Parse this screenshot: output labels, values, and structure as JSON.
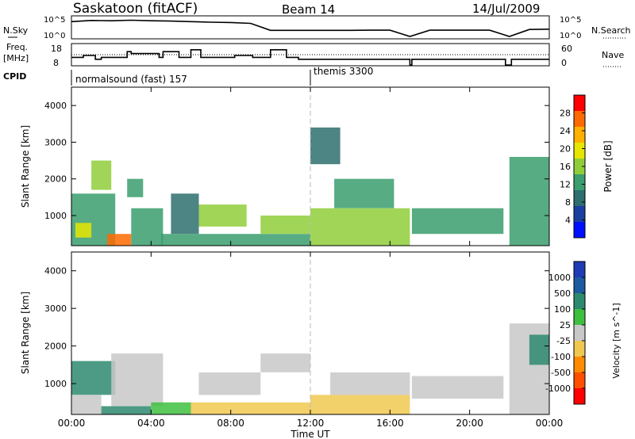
{
  "header": {
    "station": "Saskatoon (fitACF)",
    "beam": "Beam 14",
    "date": "14/Jul/2009"
  },
  "status_panels": {
    "nsky_label": "N.Sky",
    "nsky_ticks": [
      "10^5",
      "10^0"
    ],
    "nsearch_label": "N.Search",
    "nsearch_ticks": [
      "10^5",
      "10^0"
    ],
    "freq_label": "Freq.",
    "freq_unit": "[MHz]",
    "freq_ticks": [
      "18",
      "8"
    ],
    "nave_label": "Nave",
    "nave_ticks": [
      "60",
      "0"
    ],
    "cpid_label": "CPID",
    "cpid_modes": [
      {
        "name": "normalsound (fast) 157",
        "start_hour": 0
      },
      {
        "name": "themis 3300",
        "start_hour": 12
      }
    ]
  },
  "power_panel": {
    "ylabel": "Slant Range [km]",
    "yticks": [
      "4000",
      "3000",
      "2000",
      "1000"
    ],
    "colorbar_label": "Power [dB]",
    "colorbar_ticks": [
      "28",
      "24",
      "20",
      "16",
      "12",
      "8",
      "4"
    ],
    "colorbar_colors": [
      "#ff0000",
      "#ff6a00",
      "#ffb000",
      "#e6e600",
      "#8fce3a",
      "#3a9e6e",
      "#2e6e6e",
      "#1b3fa0",
      "#0010ff"
    ]
  },
  "velocity_panel": {
    "ylabel": "Slant Range [km]",
    "yticks": [
      "4000",
      "3000",
      "2000",
      "1000"
    ],
    "colorbar_label": "Velocity [m s^-1]",
    "colorbar_ticks": [
      "1000",
      "500",
      "100",
      "25",
      "-25",
      "-100",
      "-500",
      "-1000"
    ],
    "colorbar_colors": [
      "#1e3cb4",
      "#1e5aa0",
      "#2e8a6e",
      "#3fbf3f",
      "#c8c8c8",
      "#f0c850",
      "#ff8c00",
      "#ff5000",
      "#ff0000"
    ]
  },
  "x_axis": {
    "ticks": [
      "00:00",
      "04:00",
      "08:00",
      "12:00",
      "16:00",
      "20:00",
      "00:00"
    ],
    "label": "Time UT"
  },
  "chart_data": [
    {
      "type": "line",
      "title": "Saskatoon (fitACF) Beam 14 14/Jul/2009",
      "xlabel": "Time UT",
      "ylabel": "N.Sky / N.Search",
      "x": [
        0,
        1,
        2,
        3,
        4,
        5,
        6,
        7,
        8,
        9,
        10,
        11,
        12,
        13,
        14,
        15,
        16,
        17,
        18,
        19,
        20,
        21,
        22,
        23,
        24
      ],
      "series": [
        {
          "name": "N.Sky",
          "values": [
            0.85,
            0.92,
            0.9,
            0.93,
            0.9,
            0.88,
            0.85,
            0.82,
            0.8,
            0.75,
            0.35,
            0.35,
            0.35,
            0.35,
            0.35,
            0.36,
            0.36,
            0.0,
            0.36,
            0.36,
            0.36,
            0.36,
            0.0,
            0.4,
            0.42
          ]
        }
      ]
    },
    {
      "type": "line",
      "title": "",
      "xlabel": "Time UT",
      "ylabel": "Freq. [MHz]",
      "ylim": [
        8,
        18
      ],
      "x": [
        0,
        0.6,
        1.2,
        1.5,
        2.2,
        2.8,
        3.0,
        3.6,
        4.4,
        4.6,
        5.4,
        6.0,
        6.5,
        7.0,
        8.2,
        9.1,
        10.0,
        10.8,
        11.4,
        12.0,
        14.0,
        16.0,
        17.0,
        17.1,
        21.7,
        21.8,
        22.1,
        24.0
      ],
      "values": [
        12,
        13,
        11,
        12,
        12,
        15,
        14,
        14,
        12,
        15,
        12,
        16,
        12,
        12,
        13,
        12,
        16,
        12,
        11,
        11,
        11,
        11,
        8,
        11,
        11,
        8,
        11,
        11
      ]
    },
    {
      "type": "heatmap",
      "title": "Power",
      "xlabel": "Time UT",
      "ylabel": "Slant Range [km]",
      "xlim": [
        0,
        24
      ],
      "ylim": [
        180,
        4500
      ],
      "colorbar": {
        "label": "Power [dB]",
        "range": [
          0,
          30
        ],
        "ticks": [
          4,
          8,
          12,
          16,
          20,
          24,
          28
        ]
      },
      "regions": [
        {
          "t0": 0.0,
          "t1": 2.2,
          "r0": 180,
          "r1": 1600,
          "value": 12
        },
        {
          "t0": 1.8,
          "t1": 3.0,
          "r0": 180,
          "r1": 500,
          "value": 28
        },
        {
          "t0": 0.2,
          "t1": 1.0,
          "r0": 400,
          "r1": 800,
          "value": 20
        },
        {
          "t0": 1.0,
          "t1": 2.0,
          "r0": 1700,
          "r1": 2500,
          "value": 14
        },
        {
          "t0": 2.8,
          "t1": 3.6,
          "r0": 1500,
          "r1": 2000,
          "value": 12
        },
        {
          "t0": 3.0,
          "t1": 4.6,
          "r0": 180,
          "r1": 1200,
          "value": 10
        },
        {
          "t0": 5.0,
          "t1": 6.4,
          "r0": 500,
          "r1": 1600,
          "value": 9
        },
        {
          "t0": 6.4,
          "t1": 8.8,
          "r0": 700,
          "r1": 1300,
          "value": 14
        },
        {
          "t0": 4.5,
          "t1": 12.0,
          "r0": 180,
          "r1": 500,
          "value": 12
        },
        {
          "t0": 9.5,
          "t1": 12.0,
          "r0": 500,
          "r1": 1000,
          "value": 14
        },
        {
          "t0": 12.0,
          "t1": 13.5,
          "r0": 2400,
          "r1": 3400,
          "value": 8
        },
        {
          "t0": 12.0,
          "t1": 17.0,
          "r0": 180,
          "r1": 1200,
          "value": 14
        },
        {
          "t0": 13.2,
          "t1": 16.2,
          "r0": 1200,
          "r1": 2000,
          "value": 10
        },
        {
          "t0": 17.1,
          "t1": 21.7,
          "r0": 500,
          "r1": 1200,
          "value": 12
        },
        {
          "t0": 22.0,
          "t1": 24.0,
          "r0": 180,
          "r1": 2600,
          "value": 10
        }
      ]
    },
    {
      "type": "heatmap",
      "title": "Velocity",
      "xlabel": "Time UT",
      "ylabel": "Slant Range [km]",
      "xlim": [
        0,
        24
      ],
      "ylim": [
        180,
        4500
      ],
      "colorbar": {
        "label": "Velocity [m s^-1]",
        "range": [
          -1000,
          1000
        ],
        "ticks": [
          1000,
          500,
          100,
          25,
          -25,
          -100,
          -500,
          -1000
        ]
      },
      "regions": [
        {
          "t0": 0.0,
          "t1": 2.2,
          "r0": 700,
          "r1": 1600,
          "value": 150
        },
        {
          "t0": 0.0,
          "t1": 1.5,
          "r0": 180,
          "r1": 700,
          "value": 0
        },
        {
          "t0": 2.0,
          "t1": 4.6,
          "r0": 400,
          "r1": 1800,
          "value": 0
        },
        {
          "t0": 1.5,
          "t1": 4.0,
          "r0": 180,
          "r1": 400,
          "value": 200
        },
        {
          "t0": 4.0,
          "t1": 6.0,
          "r0": 180,
          "r1": 500,
          "value": 60
        },
        {
          "t0": 6.0,
          "t1": 12.0,
          "r0": 180,
          "r1": 500,
          "value": -60
        },
        {
          "t0": 6.4,
          "t1": 9.5,
          "r0": 700,
          "r1": 1300,
          "value": 0
        },
        {
          "t0": 9.5,
          "t1": 12.0,
          "r0": 1300,
          "r1": 1800,
          "value": 0
        },
        {
          "t0": 12.0,
          "t1": 17.0,
          "r0": 180,
          "r1": 700,
          "value": -80
        },
        {
          "t0": 13.0,
          "t1": 17.0,
          "r0": 700,
          "r1": 1300,
          "value": 0
        },
        {
          "t0": 17.1,
          "t1": 21.7,
          "r0": 600,
          "r1": 1200,
          "value": -20
        },
        {
          "t0": 22.0,
          "t1": 24.0,
          "r0": 180,
          "r1": 2600,
          "value": 0
        },
        {
          "t0": 23.0,
          "t1": 24.0,
          "r0": 1500,
          "r1": 2300,
          "value": 150
        }
      ]
    }
  ]
}
